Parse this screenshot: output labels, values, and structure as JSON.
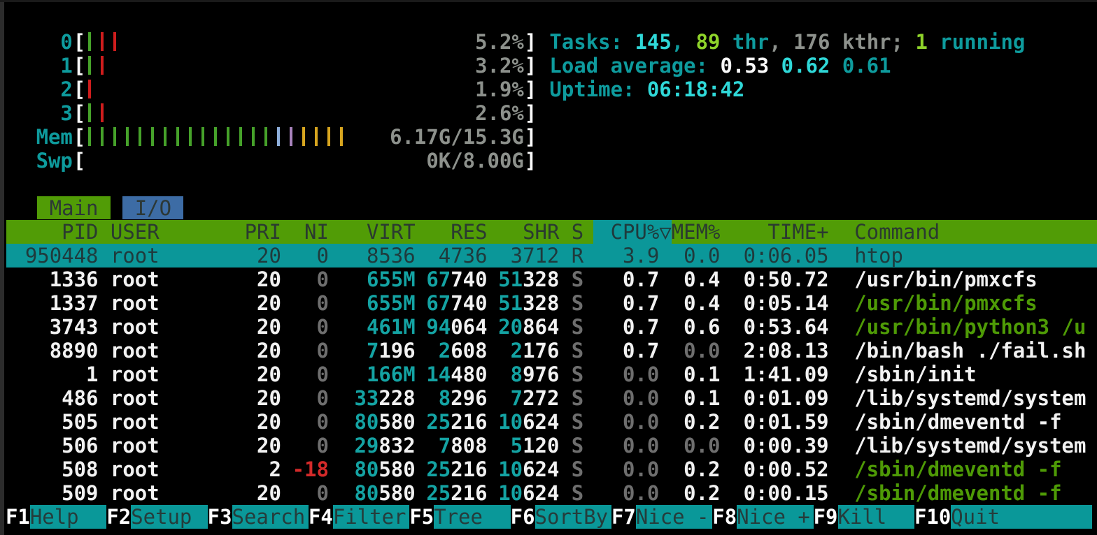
{
  "colors": {
    "background": "#000000",
    "teal_text": "#0e9b9d",
    "bright_cyan": "#2fd8d8",
    "lime_green": "#8ed32a",
    "gray": "#8d918c",
    "dim_gray": "#6e6e6e",
    "white": "#f2f2f2",
    "red": "#d42a2a",
    "header_green_bg": "#519c06",
    "tab_blue_bg": "#3d6ca5",
    "selection_teal_bg": "#0b9799",
    "command_green": "#4e9a06",
    "bar_green": "#46a22a",
    "bar_red": "#cf1d1d",
    "bar_blue": "#8fb0dc",
    "bar_purple": "#a883bc",
    "bar_yellow": "#d7a51f"
  },
  "meters": {
    "bracket_open": "[",
    "bracket_close": "]",
    "cpu": [
      {
        "label": "0",
        "value": "5.2%",
        "bars": [
          "green",
          "red",
          "red"
        ]
      },
      {
        "label": "1",
        "value": "3.2%",
        "bars": [
          "green",
          "red"
        ]
      },
      {
        "label": "2",
        "value": "1.9%",
        "bars": [
          "red"
        ]
      },
      {
        "label": "3",
        "value": "2.6%",
        "bars": [
          "green",
          "red"
        ]
      }
    ],
    "mem": {
      "label": "Mem",
      "value": "6.17G/15.3G",
      "bars": [
        "green",
        "green",
        "green",
        "green",
        "green",
        "green",
        "green",
        "green",
        "green",
        "green",
        "green",
        "green",
        "green",
        "green",
        "green",
        "blue",
        "purple",
        "yellow",
        "yellow",
        "yellow",
        "yellow"
      ]
    },
    "swp": {
      "label": "Swp",
      "value": "0K/8.00G",
      "bars": []
    }
  },
  "summary": {
    "tasks": {
      "label": "Tasks: ",
      "count": "145",
      "sep1": ", ",
      "threads": "89",
      "thr_label": " thr",
      "sep2": ", ",
      "kthreads": "176",
      "kthr_label": " kthr; ",
      "running": "1",
      "running_label": " running"
    },
    "load": {
      "label": "Load average: ",
      "one": "0.53",
      "five": "0.62",
      "fifteen": "0.61"
    },
    "uptime": {
      "label": "Uptime: ",
      "value": "06:18:42"
    }
  },
  "tabs": {
    "main": "Main",
    "io": "I/O"
  },
  "table": {
    "header": {
      "pid": "PID",
      "user": "USER",
      "pri": "PRI",
      "ni": "NI",
      "virt": "VIRT",
      "res": "RES",
      "shr": "SHR",
      "s": "S",
      "cpu": "CPU%",
      "sort_arrow": "▽",
      "mem": "MEM%",
      "time": "TIME+",
      "command": "Command"
    },
    "selected": {
      "pid": "950448",
      "user": "root",
      "pri": "20",
      "ni": "0",
      "virt": "8536",
      "res": "4736",
      "shr": "3712",
      "s": "R",
      "cpu": "3.9",
      "mem": "0.0",
      "time": "0:06.05",
      "command": "htop"
    },
    "rows": [
      {
        "pid": "1336",
        "user": "root",
        "pri": "20",
        "ni": "0",
        "ni_tone": "dim",
        "virt_hl": "655M",
        "virt_rest": "",
        "res_hl": "67",
        "res_rest": "740",
        "shr_hl": "51",
        "shr_rest": "328",
        "s": "S",
        "cpu": "0.7",
        "cpu_tone": "white",
        "mem": "0.4",
        "mem_tone": "white",
        "time": "0:50.72",
        "command": "/usr/bin/pmxcfs",
        "cmd_tone": "white"
      },
      {
        "pid": "1337",
        "user": "root",
        "pri": "20",
        "ni": "0",
        "ni_tone": "dim",
        "virt_hl": "655M",
        "virt_rest": "",
        "res_hl": "67",
        "res_rest": "740",
        "shr_hl": "51",
        "shr_rest": "328",
        "s": "S",
        "cpu": "0.7",
        "cpu_tone": "white",
        "mem": "0.4",
        "mem_tone": "white",
        "time": "0:05.14",
        "command": "/usr/bin/pmxcfs",
        "cmd_tone": "green"
      },
      {
        "pid": "3743",
        "user": "root",
        "pri": "20",
        "ni": "0",
        "ni_tone": "dim",
        "virt_hl": "461M",
        "virt_rest": "",
        "res_hl": "94",
        "res_rest": "064",
        "shr_hl": "20",
        "shr_rest": "864",
        "s": "S",
        "cpu": "0.7",
        "cpu_tone": "white",
        "mem": "0.6",
        "mem_tone": "white",
        "time": "0:53.64",
        "command": "/usr/bin/python3 /u",
        "cmd_tone": "green"
      },
      {
        "pid": "8890",
        "user": "root",
        "pri": "20",
        "ni": "0",
        "ni_tone": "dim",
        "virt_hl": "7",
        "virt_rest": "196",
        "res_hl": "2",
        "res_rest": "608",
        "shr_hl": "2",
        "shr_rest": "176",
        "s": "S",
        "cpu": "0.7",
        "cpu_tone": "white",
        "mem": "0.0",
        "mem_tone": "dim",
        "time": "2:08.13",
        "command": "/bin/bash ./fail.sh",
        "cmd_tone": "white"
      },
      {
        "pid": "1",
        "user": "root",
        "pri": "20",
        "ni": "0",
        "ni_tone": "dim",
        "virt_hl": "166M",
        "virt_rest": "",
        "res_hl": "14",
        "res_rest": "480",
        "shr_hl": "8",
        "shr_rest": "976",
        "s": "S",
        "cpu": "0.0",
        "cpu_tone": "dim",
        "mem": "0.1",
        "mem_tone": "white",
        "time": "1:41.09",
        "command": "/sbin/init",
        "cmd_tone": "white"
      },
      {
        "pid": "486",
        "user": "root",
        "pri": "20",
        "ni": "0",
        "ni_tone": "dim",
        "virt_hl": "33",
        "virt_rest": "228",
        "res_hl": "8",
        "res_rest": "296",
        "shr_hl": "7",
        "shr_rest": "272",
        "s": "S",
        "cpu": "0.0",
        "cpu_tone": "dim",
        "mem": "0.1",
        "mem_tone": "white",
        "time": "0:01.09",
        "command": "/lib/systemd/system",
        "cmd_tone": "white"
      },
      {
        "pid": "505",
        "user": "root",
        "pri": "20",
        "ni": "0",
        "ni_tone": "dim",
        "virt_hl": "80",
        "virt_rest": "580",
        "res_hl": "25",
        "res_rest": "216",
        "shr_hl": "10",
        "shr_rest": "624",
        "s": "S",
        "cpu": "0.0",
        "cpu_tone": "dim",
        "mem": "0.2",
        "mem_tone": "white",
        "time": "0:01.59",
        "command": "/sbin/dmeventd -f",
        "cmd_tone": "white"
      },
      {
        "pid": "506",
        "user": "root",
        "pri": "20",
        "ni": "0",
        "ni_tone": "dim",
        "virt_hl": "29",
        "virt_rest": "832",
        "res_hl": "7",
        "res_rest": "808",
        "shr_hl": "5",
        "shr_rest": "120",
        "s": "S",
        "cpu": "0.0",
        "cpu_tone": "dim",
        "mem": "0.0",
        "mem_tone": "dim",
        "time": "0:00.39",
        "command": "/lib/systemd/system",
        "cmd_tone": "white"
      },
      {
        "pid": "508",
        "user": "root",
        "pri": "2",
        "ni": "-18",
        "ni_tone": "red",
        "virt_hl": "80",
        "virt_rest": "580",
        "res_hl": "25",
        "res_rest": "216",
        "shr_hl": "10",
        "shr_rest": "624",
        "s": "S",
        "cpu": "0.0",
        "cpu_tone": "dim",
        "mem": "0.2",
        "mem_tone": "white",
        "time": "0:00.52",
        "command": "/sbin/dmeventd -f",
        "cmd_tone": "green"
      },
      {
        "pid": "509",
        "user": "root",
        "pri": "20",
        "ni": "0",
        "ni_tone": "dim",
        "virt_hl": "80",
        "virt_rest": "580",
        "res_hl": "25",
        "res_rest": "216",
        "shr_hl": "10",
        "shr_rest": "624",
        "s": "S",
        "cpu": "0.0",
        "cpu_tone": "dim",
        "mem": "0.2",
        "mem_tone": "white",
        "time": "0:00.15",
        "command": "/sbin/dmeventd -f",
        "cmd_tone": "green"
      }
    ]
  },
  "fkeys": [
    {
      "key": "F1",
      "label": "Help"
    },
    {
      "key": "F2",
      "label": "Setup"
    },
    {
      "key": "F3",
      "label": "Search"
    },
    {
      "key": "F4",
      "label": "Filter"
    },
    {
      "key": "F5",
      "label": "Tree"
    },
    {
      "key": "F6",
      "label": "SortBy"
    },
    {
      "key": "F7",
      "label": "Nice -"
    },
    {
      "key": "F8",
      "label": "Nice +"
    },
    {
      "key": "F9",
      "label": "Kill"
    },
    {
      "key": "F10",
      "label": "Quit",
      "wide": "1"
    }
  ]
}
